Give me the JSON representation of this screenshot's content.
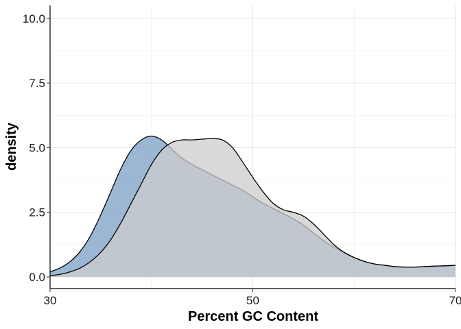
{
  "chart_data": {
    "type": "area",
    "title": "",
    "xlabel": "Percent GC Content",
    "ylabel": "density",
    "xlim": [
      30,
      70
    ],
    "ylim": [
      -0.45,
      10.5
    ],
    "x_ticks": [
      30,
      50,
      70
    ],
    "x_tick_labels": [
      "30",
      "50",
      "70"
    ],
    "y_ticks": [
      0,
      2.5,
      5,
      7.5,
      10
    ],
    "y_tick_labels": [
      "0.0",
      "2.5",
      "5.0",
      "7.5",
      "10.0"
    ],
    "grid": true,
    "legend": "none",
    "series": [
      {
        "fill": "#7a9fc6",
        "stroke": "#000000",
        "x": [
          30,
          31,
          32,
          33,
          34,
          35,
          36,
          37,
          38,
          39,
          40,
          41,
          42,
          43,
          44,
          45,
          46,
          47,
          48,
          49,
          50,
          51,
          52,
          53,
          54,
          55,
          56,
          57,
          58,
          59,
          60,
          61,
          62,
          63,
          64,
          65,
          66,
          67,
          68,
          69,
          70
        ],
        "values": [
          0.2,
          0.35,
          0.6,
          1.0,
          1.6,
          2.4,
          3.3,
          4.2,
          4.9,
          5.3,
          5.45,
          5.3,
          4.95,
          4.6,
          4.35,
          4.15,
          3.95,
          3.75,
          3.55,
          3.35,
          3.1,
          2.85,
          2.65,
          2.45,
          2.25,
          2.0,
          1.7,
          1.4,
          1.15,
          0.95,
          0.75,
          0.6,
          0.5,
          0.45,
          0.4,
          0.38,
          0.38,
          0.4,
          0.42,
          0.43,
          0.45
        ]
      },
      {
        "fill": "#cccccc",
        "stroke": "#000000",
        "x": [
          30,
          31,
          32,
          33,
          34,
          35,
          36,
          37,
          38,
          39,
          40,
          41,
          42,
          43,
          44,
          45,
          46,
          47,
          48,
          49,
          50,
          51,
          52,
          53,
          54,
          55,
          56,
          57,
          58,
          59,
          60,
          61,
          62,
          63,
          64,
          65,
          66,
          67,
          68,
          69,
          70
        ],
        "values": [
          0.05,
          0.1,
          0.2,
          0.35,
          0.6,
          0.95,
          1.45,
          2.1,
          2.85,
          3.6,
          4.35,
          4.9,
          5.2,
          5.3,
          5.3,
          5.33,
          5.35,
          5.3,
          5.0,
          4.45,
          3.85,
          3.3,
          2.85,
          2.6,
          2.5,
          2.35,
          2.05,
          1.65,
          1.25,
          0.95,
          0.75,
          0.6,
          0.5,
          0.45,
          0.4,
          0.38,
          0.38,
          0.4,
          0.42,
          0.43,
          0.45
        ]
      }
    ]
  }
}
